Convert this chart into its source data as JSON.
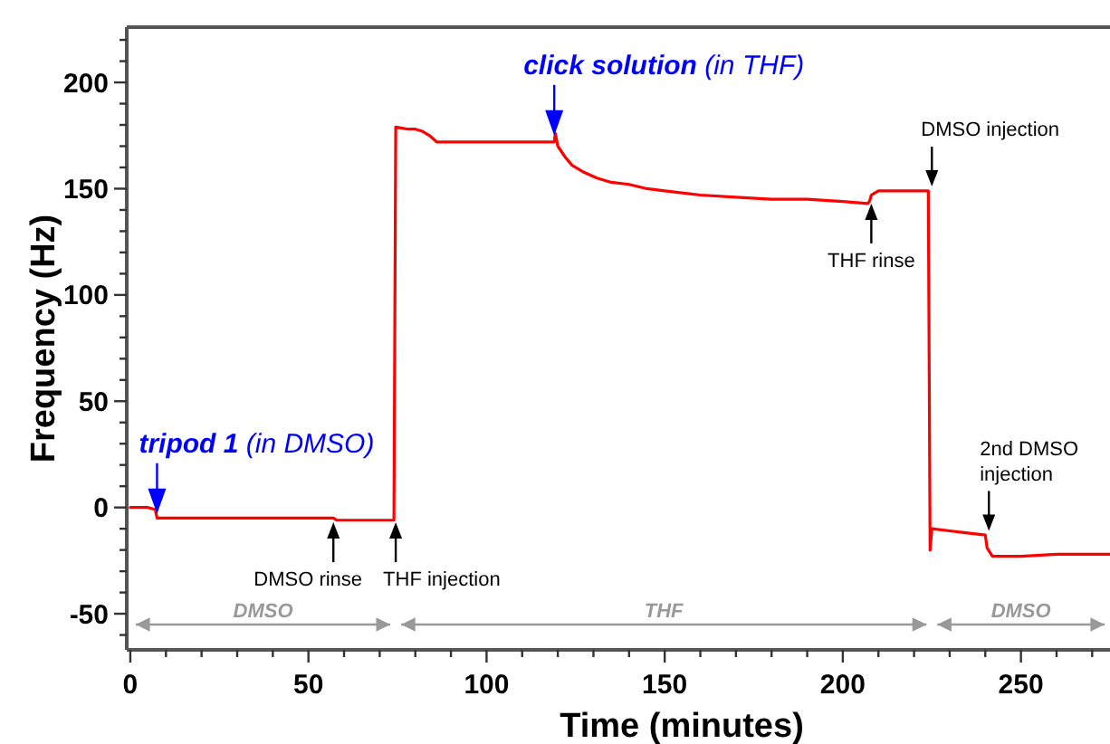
{
  "chart_data": {
    "type": "line",
    "xlabel": "Time (minutes)",
    "ylabel": "Frequency (Hz)",
    "xlim": [
      -1,
      275
    ],
    "ylim": [
      -67,
      226
    ],
    "xticks": [
      0,
      {
        "value": 10,
        "label": null
      },
      {
        "value": 20,
        "label": null
      },
      {
        "value": 30,
        "label": null
      },
      {
        "value": 40,
        "label": null
      },
      50,
      {
        "value": 60,
        "label": null
      },
      {
        "value": 70,
        "label": null
      },
      {
        "value": 80,
        "label": null
      },
      {
        "value": 90,
        "label": null
      },
      100,
      {
        "value": 110,
        "label": null
      },
      {
        "value": 120,
        "label": null
      },
      {
        "value": 130,
        "label": null
      },
      {
        "value": 140,
        "label": null
      },
      150,
      {
        "value": 160,
        "label": null
      },
      {
        "value": 170,
        "label": null
      },
      {
        "value": 180,
        "label": null
      },
      {
        "value": 190,
        "label": null
      },
      200,
      {
        "value": 210,
        "label": null
      },
      {
        "value": 220,
        "label": null
      },
      {
        "value": 230,
        "label": null
      },
      {
        "value": 240,
        "label": null
      },
      250,
      {
        "value": 260,
        "label": null
      },
      {
        "value": 270,
        "label": null
      }
    ],
    "yticks": [
      {
        "value": -60,
        "label": null
      },
      -50,
      {
        "value": -40,
        "label": null
      },
      {
        "value": -30,
        "label": null
      },
      {
        "value": -20,
        "label": null
      },
      {
        "value": -10,
        "label": null
      },
      0,
      {
        "value": 10,
        "label": null
      },
      {
        "value": 20,
        "label": null
      },
      {
        "value": 30,
        "label": null
      },
      {
        "value": 40,
        "label": null
      },
      50,
      {
        "value": 60,
        "label": null
      },
      {
        "value": 70,
        "label": null
      },
      {
        "value": 80,
        "label": null
      },
      {
        "value": 90,
        "label": null
      },
      100,
      {
        "value": 110,
        "label": null
      },
      {
        "value": 120,
        "label": null
      },
      {
        "value": 130,
        "label": null
      },
      {
        "value": 140,
        "label": null
      },
      150,
      {
        "value": 160,
        "label": null
      },
      {
        "value": 170,
        "label": null
      },
      {
        "value": 180,
        "label": null
      },
      {
        "value": 190,
        "label": null
      },
      200,
      {
        "value": 210,
        "label": null
      },
      {
        "value": 220,
        "label": null
      }
    ],
    "grid": false,
    "marker": "none",
    "line_style": "solid",
    "series": [
      {
        "color": "#ff0000",
        "x": [
          0,
          5,
          7,
          7.5,
          20,
          40,
          57,
          58,
          74,
          74.5,
          78,
          80,
          82,
          84,
          86,
          100,
          119,
          119.3,
          120,
          122,
          124,
          127,
          131,
          135,
          140,
          145,
          150,
          160,
          170,
          180,
          190,
          200,
          207,
          207.5,
          208,
          209,
          210,
          215,
          224,
          224.5,
          225,
          230,
          235,
          240,
          240.5,
          242,
          245,
          250,
          260,
          275
        ],
        "values": [
          0,
          0,
          -1,
          -5,
          -5,
          -5,
          -5,
          -6,
          -6,
          179,
          178,
          178,
          177,
          175,
          172,
          172,
          172,
          176,
          170,
          165,
          161,
          158,
          155,
          153,
          152,
          150,
          149,
          147,
          146,
          145,
          145,
          144,
          143,
          144,
          147,
          148,
          149,
          149,
          149,
          -20,
          -10,
          -11,
          -12,
          -13,
          -19,
          -23,
          -23,
          -23,
          -22,
          -22
        ]
      }
    ],
    "annotations": [
      {
        "text": "tripod 1 (in DMSO)",
        "x": 7.5,
        "y": -3
      },
      {
        "text": "click solution (in THF)",
        "x": 119,
        "y": 175
      },
      {
        "text": "DMSO rinse",
        "x": 57,
        "y": -7
      },
      {
        "text": "THF injection",
        "x": 74.5,
        "y": -7
      },
      {
        "text": "THF rinse",
        "x": 208,
        "y": 143
      },
      {
        "text": "DMSO injection",
        "x": 225,
        "y": 151
      },
      {
        "text": "2nd DMSO injection",
        "x": 241,
        "y": -11
      },
      "DMSO",
      "THF",
      "DMSO"
    ]
  }
}
